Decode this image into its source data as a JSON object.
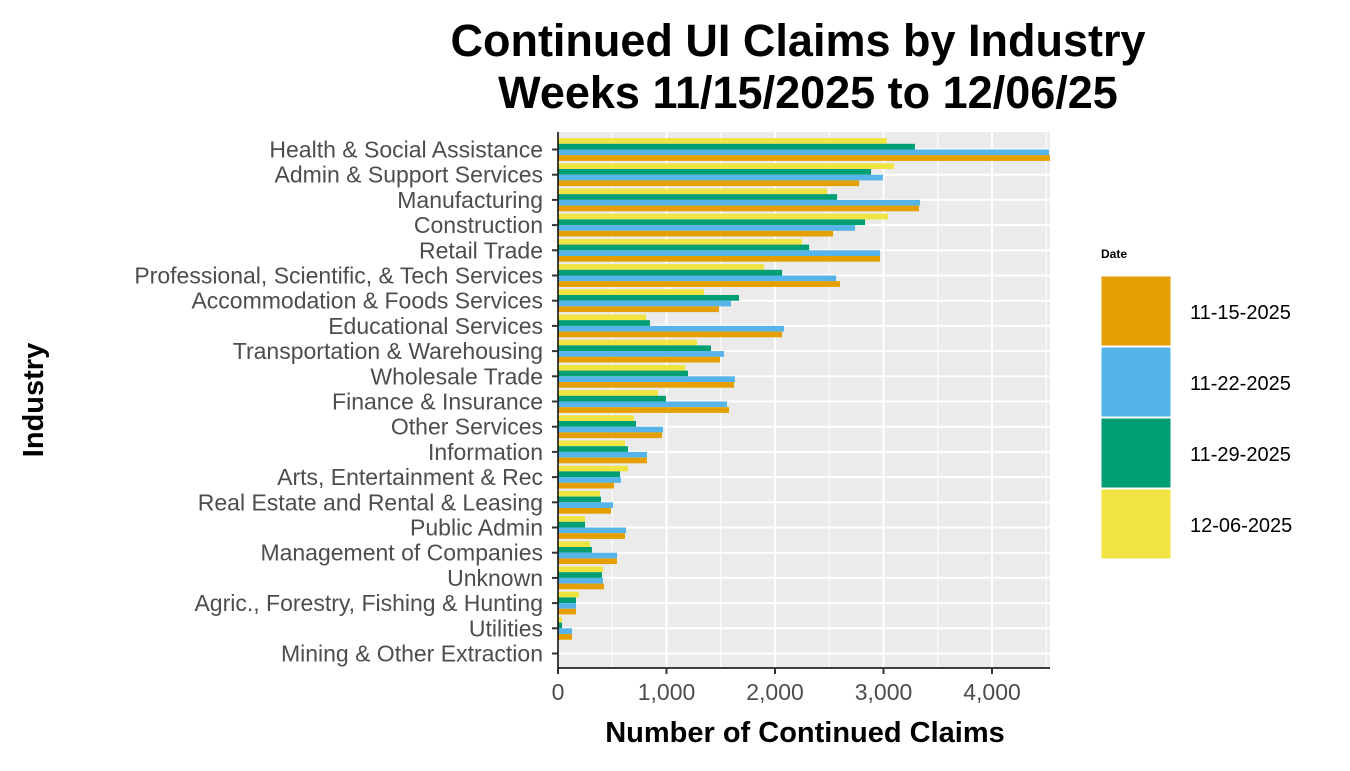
{
  "chart_data": {
    "type": "bar",
    "orientation": "horizontal",
    "title": "Continued UI Claims by Industry",
    "subtitle": "Weeks 11/15/2025 to 12/06/25",
    "xlabel": "Number of Continued Claims",
    "ylabel": "Industry",
    "xlim": [
      0,
      4545
    ],
    "xticks": [
      0,
      1000,
      2000,
      3000,
      4000
    ],
    "xtick_labels": [
      "0",
      "1,000",
      "2,000",
      "3,000",
      "4,000"
    ],
    "grid": true,
    "legend": {
      "title": "Date",
      "placement": "right"
    },
    "categories": [
      "Health & Social Assistance",
      "Admin & Support Services",
      "Manufacturing",
      "Construction",
      "Retail Trade",
      "Professional, Scientific, & Tech Services",
      "Accommodation & Foods Services",
      "Educational Services",
      "Transportation & Warehousing",
      "Wholesale Trade",
      "Finance & Insurance",
      "Other Services",
      "Information",
      "Arts, Entertainment & Rec",
      "Real Estate and Rental & Leasing",
      "Public Admin",
      "Management of Companies",
      "Unknown",
      "Agric., Forestry, Fishing & Hunting",
      "Utilities",
      "Mining & Other Extraction"
    ],
    "series": [
      {
        "name": "11-15-2025",
        "color": "#E69F00",
        "values": [
          4535,
          2775,
          3327,
          2535,
          2968,
          2599,
          1484,
          2065,
          1493,
          1622,
          1576,
          958,
          820,
          516,
          488,
          617,
          544,
          424,
          166,
          129,
          0
        ]
      },
      {
        "name": "11-22-2025",
        "color": "#56B4E9",
        "values": [
          4525,
          2995,
          3337,
          2738,
          2968,
          2563,
          1594,
          2083,
          1530,
          1631,
          1558,
          968,
          820,
          580,
          507,
          627,
          544,
          415,
          166,
          129,
          0
        ]
      },
      {
        "name": "11-29-2025",
        "color": "#009E73",
        "values": [
          3290,
          2885,
          2572,
          2830,
          2314,
          2065,
          1668,
          848,
          1410,
          1198,
          995,
          719,
          645,
          571,
          396,
          249,
          313,
          405,
          166,
          37,
          0
        ]
      },
      {
        "name": "12-06-2025",
        "color": "#F0E442",
        "values": [
          3030,
          3097,
          2480,
          3042,
          2249,
          1899,
          1346,
          811,
          1281,
          1171,
          921,
          700,
          617,
          645,
          387,
          249,
          295,
          415,
          193,
          37,
          0
        ]
      }
    ]
  }
}
